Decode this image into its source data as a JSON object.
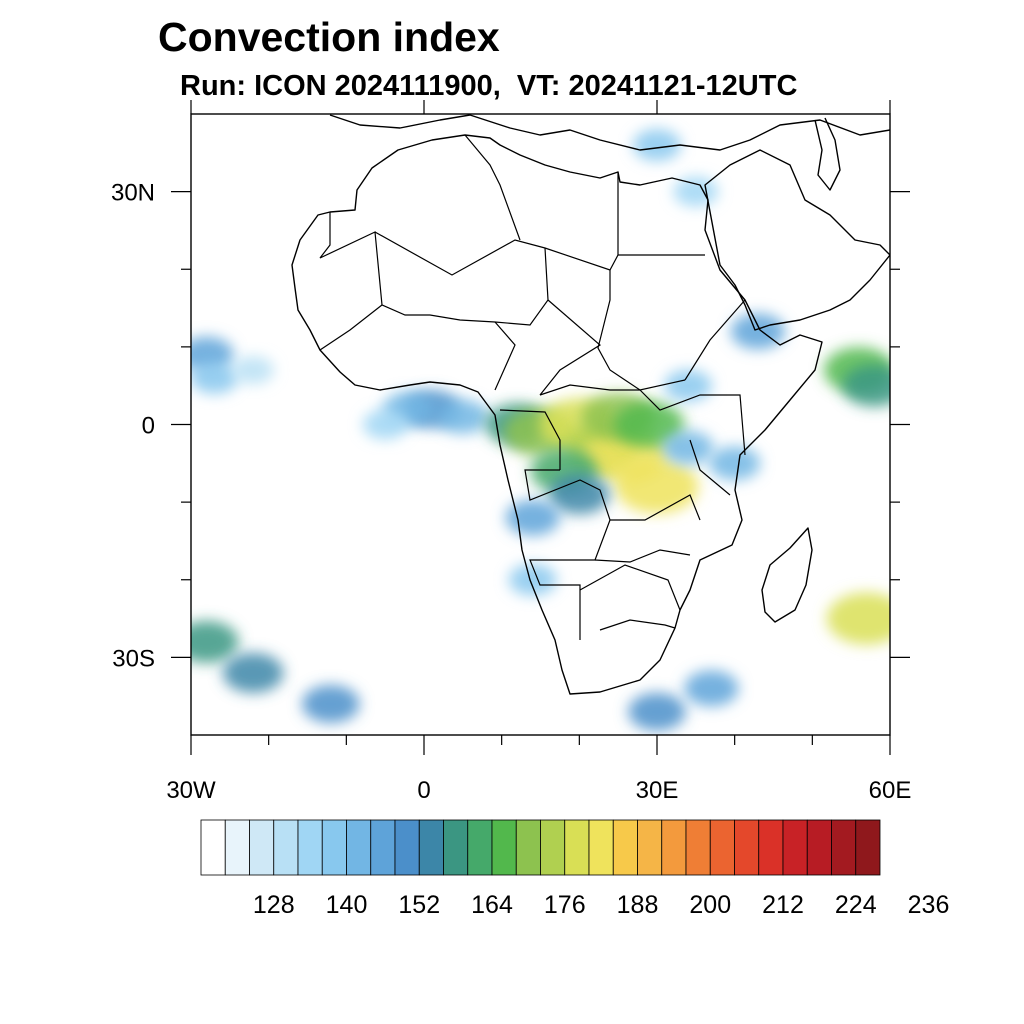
{
  "title": "Convection index",
  "subtitle": "Run: ICON 2024111900,  VT: 20241121-12UTC",
  "map": {
    "lon_range": [
      -30,
      60
    ],
    "lat_range": [
      -40,
      40
    ],
    "lon_ticks": [
      {
        "value": -30,
        "label": "30W"
      },
      {
        "value": 0,
        "label": "0"
      },
      {
        "value": 30,
        "label": "30E"
      },
      {
        "value": 60,
        "label": "60E"
      }
    ],
    "lat_ticks": [
      {
        "value": 30,
        "label": "30N"
      },
      {
        "value": 0,
        "label": "0"
      },
      {
        "value": -30,
        "label": "30S"
      }
    ],
    "minor_lon_ticks": [
      -20,
      -10,
      10,
      20,
      40,
      50
    ],
    "minor_lat_ticks": [
      20,
      10,
      -10,
      -20
    ],
    "coastline_color": "#000000",
    "field_cells": [
      {
        "lon": -28,
        "lat": 9,
        "lvl": 7
      },
      {
        "lon": -27,
        "lat": 6,
        "lvl": 5
      },
      {
        "lon": -22,
        "lat": 7,
        "lvl": 3
      },
      {
        "lon": 1,
        "lat": 2,
        "lvl": 8
      },
      {
        "lon": -2,
        "lat": 2,
        "lvl": 6
      },
      {
        "lon": -5,
        "lat": 0,
        "lvl": 4
      },
      {
        "lon": 5,
        "lat": 1,
        "lvl": 6
      },
      {
        "lon": 12,
        "lat": 0,
        "lvl": 10
      },
      {
        "lon": 15,
        "lat": -1,
        "lvl": 13
      },
      {
        "lon": 20,
        "lat": 0,
        "lvl": 15
      },
      {
        "lon": 23,
        "lat": -3,
        "lvl": 14
      },
      {
        "lon": 26,
        "lat": -4,
        "lvl": 16
      },
      {
        "lon": 25,
        "lat": 1,
        "lvl": 13
      },
      {
        "lon": 29,
        "lat": 0,
        "lvl": 12
      },
      {
        "lon": 30,
        "lat": -8,
        "lvl": 16
      },
      {
        "lon": 18,
        "lat": -6,
        "lvl": 11
      },
      {
        "lon": 20,
        "lat": -9,
        "lvl": 9
      },
      {
        "lon": 14,
        "lat": -12,
        "lvl": 7
      },
      {
        "lon": 34,
        "lat": -3,
        "lvl": 6
      },
      {
        "lon": 34,
        "lat": 5,
        "lvl": 5
      },
      {
        "lon": 40,
        "lat": -5,
        "lvl": 6
      },
      {
        "lon": 43,
        "lat": 12,
        "lvl": 7
      },
      {
        "lon": 56,
        "lat": 7,
        "lvl": 12
      },
      {
        "lon": 58,
        "lat": 5,
        "lvl": 10
      },
      {
        "lon": 57,
        "lat": -25,
        "lvl": 15
      },
      {
        "lon": 30,
        "lat": 36,
        "lvl": 5
      },
      {
        "lon": 35,
        "lat": 30,
        "lvl": 4
      },
      {
        "lon": -28,
        "lat": -28,
        "lvl": 10
      },
      {
        "lon": -22,
        "lat": -32,
        "lvl": 9
      },
      {
        "lon": -12,
        "lat": -36,
        "lvl": 8
      },
      {
        "lon": 30,
        "lat": -37,
        "lvl": 8
      },
      {
        "lon": 37,
        "lat": -34,
        "lvl": 7
      },
      {
        "lon": 14,
        "lat": -20,
        "lvl": 5
      }
    ]
  },
  "colorbar": {
    "colors": [
      "#ffffff",
      "#e8f4fb",
      "#cfe8f6",
      "#b8e0f5",
      "#a0d6f4",
      "#88c8ee",
      "#72b6e4",
      "#5ea3d9",
      "#4b8fca",
      "#3c86a8",
      "#3b9682",
      "#45a96a",
      "#52b84c",
      "#8dc24f",
      "#b0d050",
      "#d9df55",
      "#efe35c",
      "#f7c94a",
      "#f5b547",
      "#f39a3d",
      "#ef7e35",
      "#eb6430",
      "#e4482b",
      "#da3128",
      "#c82226",
      "#b71c24",
      "#a31a20",
      "#8f181c"
    ],
    "labels": [
      "128",
      "140",
      "152",
      "164",
      "176",
      "188",
      "200",
      "212",
      "224",
      "236"
    ]
  }
}
